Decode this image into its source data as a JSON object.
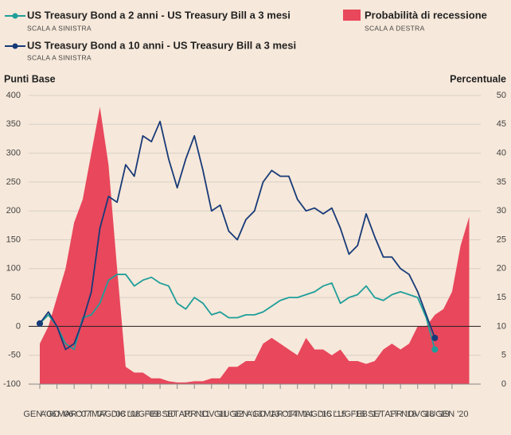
{
  "chart_data": {
    "type": "line",
    "legend": [
      {
        "name": "US Treasury Bond a 2 anni - US Treasury Bill a 3 mesi",
        "note": "SCALA A SINISTRA"
      },
      {
        "name": "US Treasury Bond a 10 anni - US Treasury Bill a 3 mesi",
        "note": "SCALA A SINISTRA"
      },
      {
        "name": "Probabilità di recessione",
        "note": "SCALA A DESTRA"
      }
    ],
    "ylabel": "Punti Base",
    "y2label": "Percentuale",
    "categories": [
      "GEN '06",
      null,
      "AGO '06",
      null,
      "MAR '07",
      null,
      "OTT '07",
      null,
      "MAG '08",
      null,
      "DIC '08",
      null,
      "LUG '09",
      null,
      "FEB '10",
      null,
      "SET '10",
      null,
      "APR '11",
      null,
      "NOV '11",
      null,
      "GIU '12",
      null,
      "GEN '13",
      null,
      "AGO '13",
      null,
      "MAR '14",
      null,
      "OTT '14",
      null,
      "MAG '15",
      null,
      "DIC '15",
      null,
      "LUG '16",
      null,
      "FEB '17",
      null,
      "SET '17",
      null,
      "APR '18",
      null,
      "NOV '18",
      null,
      "GIU '19",
      null,
      "GEN '20",
      null,
      null
    ],
    "series": [
      {
        "name": "US Treasury Bond a 2 anni - US Treasury Bill a 3 mesi",
        "color": "#1f9e9a",
        "axis": "y",
        "values": [
          5,
          20,
          0,
          -30,
          -40,
          15,
          20,
          40,
          80,
          90,
          90,
          70,
          80,
          85,
          75,
          70,
          40,
          30,
          50,
          40,
          20,
          25,
          15,
          15,
          20,
          20,
          25,
          35,
          45,
          50,
          50,
          55,
          60,
          70,
          75,
          40,
          50,
          55,
          70,
          50,
          45,
          55,
          60,
          55,
          50,
          15,
          -40,
          null,
          null,
          null,
          null
        ]
      },
      {
        "name": "US Treasury Bond a 10 anni - US Treasury Bill a 3 mesi",
        "color": "#173a78",
        "axis": "y",
        "values": [
          5,
          25,
          0,
          -40,
          -30,
          10,
          60,
          170,
          225,
          215,
          280,
          260,
          330,
          320,
          355,
          290,
          240,
          290,
          330,
          270,
          200,
          210,
          165,
          150,
          185,
          200,
          250,
          270,
          260,
          260,
          220,
          200,
          205,
          195,
          205,
          170,
          125,
          140,
          195,
          155,
          120,
          120,
          100,
          90,
          60,
          20,
          -20,
          null,
          null,
          null,
          null
        ]
      },
      {
        "name": "Probabilità di recessione",
        "color": "#e8475c",
        "axis": "y2",
        "values": [
          7,
          10,
          15,
          20,
          28,
          32,
          40,
          48,
          38,
          20,
          3,
          2,
          2,
          1,
          1,
          0.5,
          0.3,
          0.3,
          0.5,
          0.5,
          1,
          1,
          3,
          3,
          4,
          4,
          7,
          8,
          7,
          6,
          5,
          8,
          6,
          6,
          5,
          6,
          4,
          4,
          3.5,
          4,
          6,
          7,
          6,
          7,
          10,
          10,
          12,
          13,
          16,
          24,
          29
        ]
      }
    ],
    "ylim": [
      -100,
      400
    ],
    "yticks": [
      -100,
      -50,
      0,
      50,
      100,
      150,
      200,
      250,
      300,
      350,
      400
    ],
    "y2lim": [
      0,
      50
    ],
    "y2ticks": [
      0,
      5,
      10,
      15,
      20,
      25,
      30,
      35,
      40,
      45,
      50
    ],
    "grid": true
  }
}
